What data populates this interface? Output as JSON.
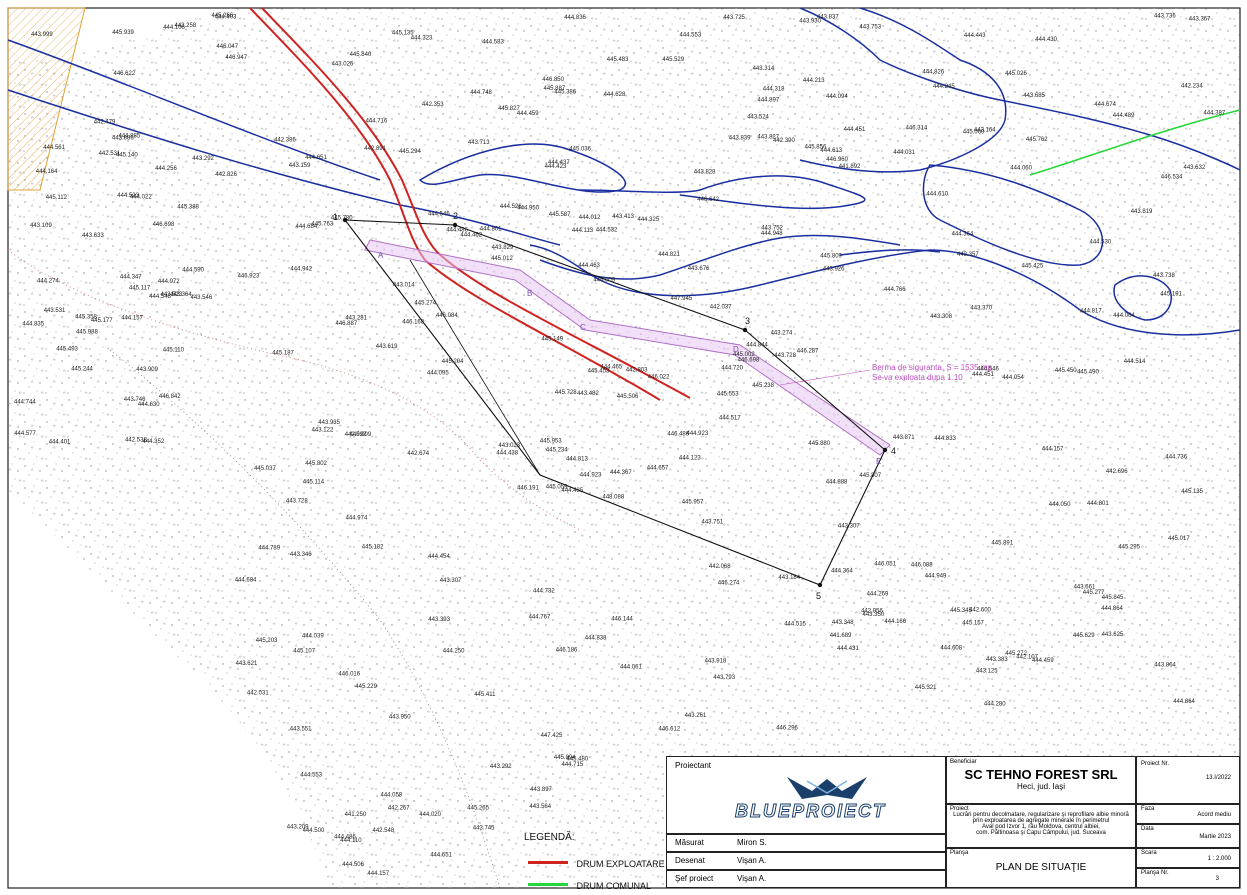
{
  "map": {
    "points": [
      {
        "label": "1"
      },
      {
        "label": "2"
      },
      {
        "label": "3"
      },
      {
        "label": "4"
      },
      {
        "label": "5"
      }
    ],
    "berma_points": [
      "A",
      "B",
      "C",
      "D",
      "E"
    ],
    "berma_note": {
      "line1": "Berma de siguranta, S = 1535 mp",
      "line2": "Se va exploata dupa 1.10"
    },
    "elevations": [
      "448.088",
      "446.698",
      "445.234",
      "444.720",
      "445.229",
      "444.213",
      "443.413",
      "444.613",
      "444.923",
      "446.947",
      "446.842",
      "446.534",
      "446.191",
      "445.809",
      "445.587",
      "447.945",
      "446.084",
      "444.553",
      "444.012",
      "446.698",
      "444.949",
      "445.388",
      "445.386",
      "445.244",
      "444.364",
      "445.191",
      "445.953",
      "447.425",
      "445.728",
      "445.780",
      "446.314",
      "446.016",
      "446.088",
      "444.553",
      "446.168",
      "445.187",
      "444.431",
      "444.486",
      "444.835",
      "445.553",
      "444.715",
      "444.517",
      "444.530",
      "444.561",
      "443.350",
      "443.551",
      "446.047",
      "445.939",
      "446.612",
      "445.762",
      "445.483",
      "445.009",
      "445.177",
      "444.942",
      "445.000",
      "445.266",
      "444.318",
      "445.827",
      "445.453",
      "446.186",
      "444.020",
      "446.051",
      "446.887",
      "446.622",
      "446.923",
      "445.149",
      "446.022",
      "445.880",
      "445.845",
      "445.490",
      "446.144",
      "446.296",
      "446.850",
      "445.135",
      "446.287",
      "445.321",
      "445.506",
      "445.629",
      "445.988",
      "445.856",
      "446.960",
      "445.037",
      "445.135",
      "444.736",
      "445.493",
      "444.684",
      "445.107",
      "444.058",
      "445.002",
      "444.060",
      "444.095",
      "444.801",
      "445.140",
      "444.532",
      "444.438",
      "444.323",
      "444.435",
      "444.674",
      "444.526",
      "444.583",
      "444.430",
      "444.821",
      "444.546",
      "443.871",
      "443.346",
      "443.745",
      "444.546",
      "444.523",
      "443.281",
      "445.294",
      "445.295",
      "445.157",
      "444.974",
      "445.017",
      "445.274",
      "445.957",
      "445.110",
      "445.272",
      "444.657",
      "444.844",
      "444.885",
      "445.265",
      "445.894",
      "445.887",
      "444.817",
      "445.763",
      "445.358",
      "444.651",
      "445.891",
      "445.529",
      "445.036",
      "445.009",
      "445.802",
      "446.642",
      "446.274",
      "444.628",
      "444.577",
      "444.836",
      "444.897",
      "444.347",
      "444.732",
      "444.403",
      "444.459",
      "444.274",
      "443.314",
      "443.274",
      "442.548",
      "443.839",
      "443.348",
      "443.109",
      "443.523",
      "443.633",
      "444.367",
      "444.157",
      "443.886",
      "443.546",
      "444.548",
      "443.909",
      "443.950",
      "444.813",
      "445.277",
      "444.250",
      "444.113",
      "444.364",
      "445.238",
      "445.480",
      "444.352",
      "444.950",
      "445.345",
      "445.203",
      "444.630",
      "444.826",
      "445.012",
      "444.744",
      "444.766",
      "444.401",
      "445.059",
      "444.767",
      "444.245",
      "444.864",
      "443.819",
      "443.619",
      "444.864",
      "445.450",
      "445.411",
      "443.751",
      "444.454",
      "443.746",
      "444.748",
      "444.325",
      "443.752",
      "444.500",
      "444.039",
      "443.728",
      "443.685",
      "443.258",
      "443.930",
      "444.164",
      "444.157",
      "443.999",
      "443.728",
      "443.524",
      "443.935",
      "442.538",
      "442.956",
      "443.738",
      "443.661",
      "443.753",
      "443.364",
      "444.061",
      "443.793",
      "443.159",
      "443.926",
      "443.370",
      "444.801",
      "442.267",
      "443.736",
      "443.014",
      "444.610",
      "443.393",
      "443.261",
      "443.676",
      "443.383",
      "442.107",
      "443.307",
      "444.387",
      "443.482",
      "443.713",
      "444.486",
      "444.651",
      "443.292",
      "442.092",
      "442.353",
      "441.892",
      "442.531",
      "442.674",
      "443.023",
      "442.390",
      "442.696",
      "443.122",
      "442.479",
      "443.184",
      "442.031",
      "443.307",
      "443.918",
      "443.625",
      "443.292",
      "444.166",
      "443.367",
      "443.026",
      "443.357",
      "444.022",
      "443.164",
      "444.280",
      "444.923",
      "444.094",
      "444.031",
      "443.837",
      "444.789",
      "444.972",
      "443.897",
      "444.123",
      "443.308",
      "444.716",
      "444.256",
      "443.829",
      "443.725",
      "443.209",
      "445.204",
      "442.386",
      "442.234",
      "445.026",
      "444.459",
      "442.068",
      "443.564",
      "442.826",
      "442.803",
      "443.125",
      "442.600",
      "441.250",
      "443.621",
      "443.531",
      "442.037",
      "444.050",
      "442.891",
      "444.590",
      "444.515",
      "444.608",
      "444.451",
      "444.157",
      "444.451",
      "443.828",
      "445.425",
      "445.807",
      "444.514",
      "444.054",
      "444.948",
      "444.437",
      "444.465",
      "443.632",
      "444.106",
      "444.443",
      "444.463",
      "443.864",
      "445.117",
      "445.182",
      "446.486",
      "445.840",
      "444.833",
      "445.114",
      "444.888",
      "444.684",
      "444.462",
      "443.827",
      "445.112",
      "444.110",
      "444.423",
      "444.838",
      "444.506",
      "444.489",
      "444.269",
      "441.689",
      "444.064"
    ]
  },
  "legend": {
    "title": "LEGENDĂ:",
    "items": [
      {
        "label": "DRUM EXPLOATARE",
        "color": "#d0231f"
      },
      {
        "label": "DRUM COMUNAL",
        "color": "#26d63a"
      }
    ]
  },
  "titleblock": {
    "proiectant_label": "Proiectant",
    "logo_text": "BLUEPROIECT",
    "rows": [
      {
        "role": "Măsurat",
        "name": "Miron S."
      },
      {
        "role": "Desenat",
        "name": "Vişan A."
      },
      {
        "role": "Şef proiect",
        "name": "Vişan A."
      }
    ],
    "beneficiar_label": "Beneficiar",
    "beneficiar_name": "SC TEHNO FOREST SRL",
    "beneficiar_loc": "Heci, jud. Iaşi",
    "proiect_label": "Proiect",
    "proiect_lines": [
      "Lucrări pentru decolmatare, regularizare şi reprofilare albie minoră",
      "prin exploatarea de agregate minerale în perimetrul",
      "Aval pod Izvor 1, râu Moldova, centrul albiei,",
      "com. Păltinoasa şi Capu Câmpului, jud. Suceava"
    ],
    "plansa_label": "Planşa",
    "plansa_name": "PLAN DE SITUAŢIE",
    "proiect_nr_label": "Proiect Nr.",
    "proiect_nr": "13.I/2022",
    "faza_label": "Faza",
    "faza": "Acord mediu",
    "data_label": "Data",
    "data": "Martie 2023",
    "scara_label": "Scara",
    "scara": "1 : 2.000",
    "plansa_nr_label": "Planşa Nr.",
    "plansa_nr": "3"
  }
}
